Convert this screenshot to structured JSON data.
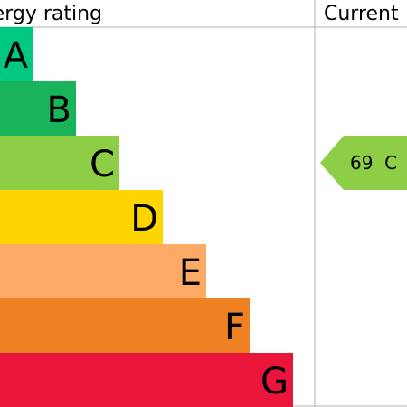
{
  "header": {
    "rating_label": "Energy rating",
    "current_label": "Current"
  },
  "chart_data": {
    "type": "bar",
    "title": "",
    "bands": [
      {
        "letter": "A",
        "color": "#00c781"
      },
      {
        "letter": "B",
        "color": "#19b459"
      },
      {
        "letter": "C",
        "color": "#8dce46"
      },
      {
        "letter": "D",
        "color": "#ffd500"
      },
      {
        "letter": "E",
        "color": "#fcaa65"
      },
      {
        "letter": "F",
        "color": "#ef8023"
      },
      {
        "letter": "G",
        "color": "#e9153b"
      }
    ],
    "current": {
      "score": 69,
      "band": "C",
      "label": "69  C",
      "color": "#8dce46"
    },
    "grid_color": "#b3b3b3"
  }
}
